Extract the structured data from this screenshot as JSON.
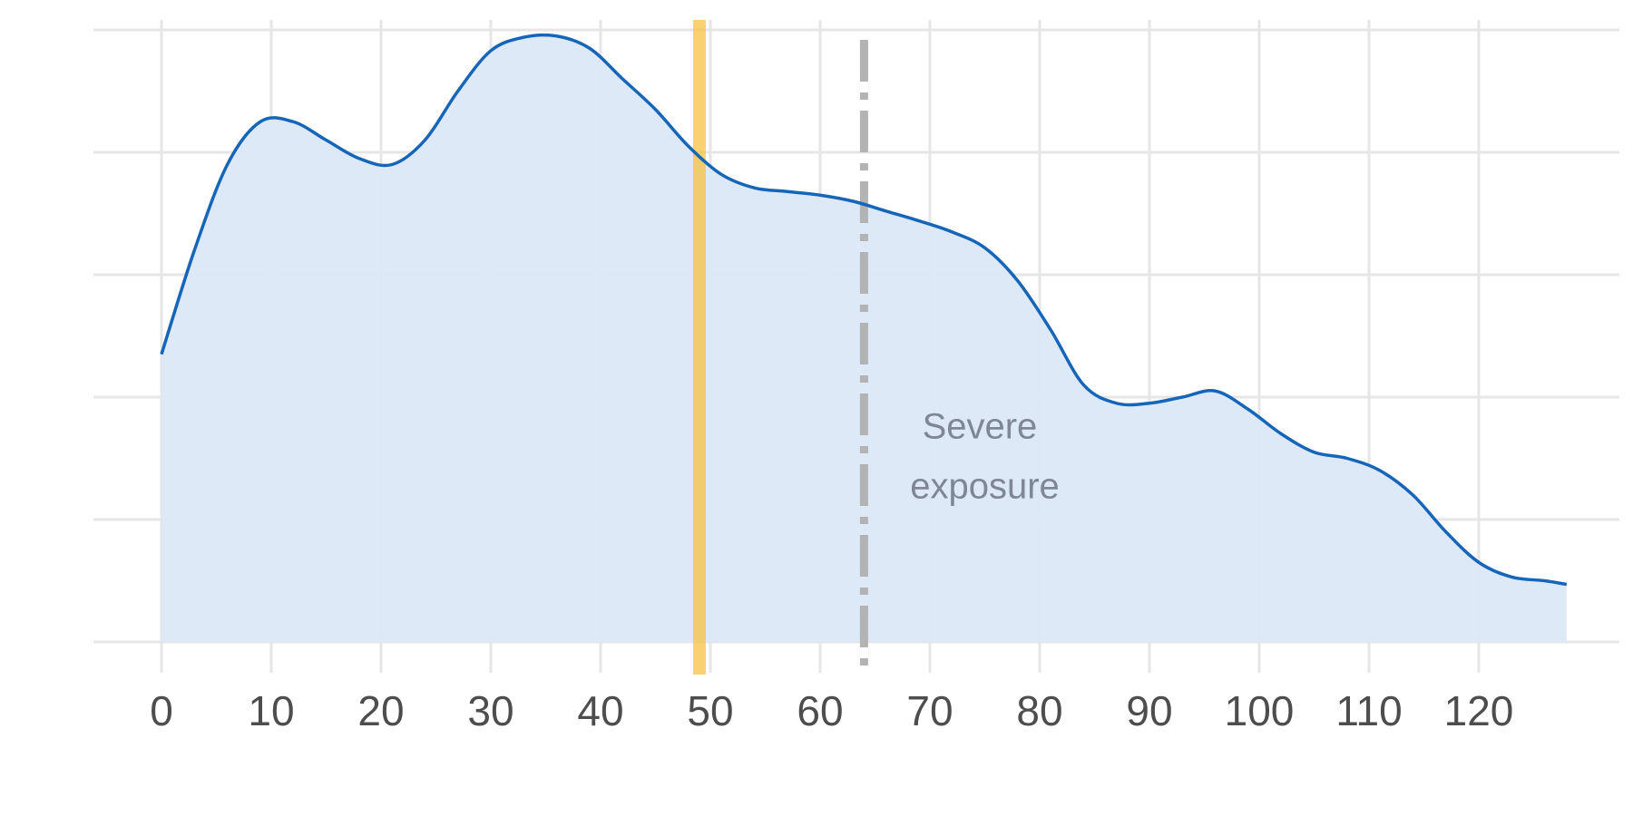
{
  "chart_data": {
    "type": "area",
    "title": "",
    "xlabel": "",
    "ylabel": "",
    "xlim": [
      -6,
      134
    ],
    "ylim": [
      0,
      5
    ],
    "x_ticks": [
      0,
      10,
      20,
      30,
      40,
      50,
      60,
      70,
      80,
      90,
      100,
      110,
      120
    ],
    "x_tick_labels": [
      "0",
      "10",
      "20",
      "30",
      "40",
      "50",
      "60",
      "70",
      "80",
      "90",
      "100",
      "110",
      "120"
    ],
    "y_ticks": [
      0,
      1,
      2,
      3,
      4,
      5
    ],
    "y_tick_labels": [],
    "grid": true,
    "series": [
      {
        "x": [
          0,
          3,
          6,
          9,
          12,
          15,
          18,
          21,
          24,
          27,
          30,
          33,
          36,
          39,
          42,
          45,
          48,
          51,
          54,
          57,
          60,
          63,
          66,
          69,
          72,
          75,
          78,
          81,
          84,
          87,
          90,
          93,
          96,
          99,
          102,
          105,
          108,
          111,
          114,
          117,
          120,
          123,
          126,
          128
        ],
        "y": [
          2.35,
          3.2,
          3.9,
          4.25,
          4.25,
          4.1,
          3.95,
          3.9,
          4.1,
          4.5,
          4.83,
          4.94,
          4.95,
          4.85,
          4.6,
          4.35,
          4.05,
          3.82,
          3.71,
          3.68,
          3.65,
          3.6,
          3.52,
          3.44,
          3.35,
          3.22,
          2.95,
          2.55,
          2.1,
          1.95,
          1.95,
          2.0,
          2.05,
          1.9,
          1.7,
          1.55,
          1.5,
          1.4,
          1.2,
          0.9,
          0.65,
          0.53,
          0.5,
          0.47
        ],
        "color": "#1565b8",
        "fill": "#dce8f7"
      }
    ],
    "reference_lines": [
      {
        "x": 49,
        "style": "band",
        "color": "#f5c242"
      },
      {
        "x": 64,
        "style": "dashdot",
        "color": "#b3b3b3"
      }
    ],
    "annotations": [
      {
        "x": 75,
        "y": 1.65,
        "lines": [
          "Severe",
          "exposure"
        ],
        "color": "#7f8795"
      }
    ]
  }
}
